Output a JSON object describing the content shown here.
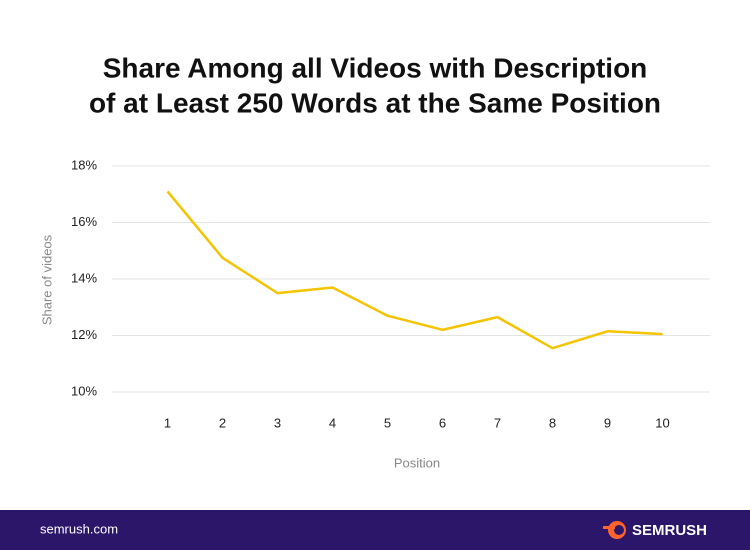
{
  "chart_data": {
    "type": "line",
    "title": [
      "Share Among all Videos with Description",
      "of at Least 250 Words at the Same Position"
    ],
    "x_label": "Position",
    "y_label": "Share of videos",
    "categories": [
      "1",
      "2",
      "3",
      "4",
      "5",
      "6",
      "7",
      "8",
      "9",
      "10"
    ],
    "series": [
      {
        "color": "#f5c400",
        "values": [
          17.1,
          14.75,
          13.5,
          13.7,
          12.7,
          12.2,
          12.65,
          11.55,
          12.15,
          12.05
        ]
      }
    ],
    "ylim": [
      10,
      18
    ],
    "yticks": [
      {
        "value": 10,
        "label": "10%"
      },
      {
        "value": 12,
        "label": "12%"
      },
      {
        "value": 14,
        "label": "14%"
      },
      {
        "value": 16,
        "label": "16%"
      },
      {
        "value": 18,
        "label": "18%"
      }
    ],
    "grid": true
  },
  "footer": {
    "url": "semrush.com",
    "brand": "SEMRUSH"
  }
}
